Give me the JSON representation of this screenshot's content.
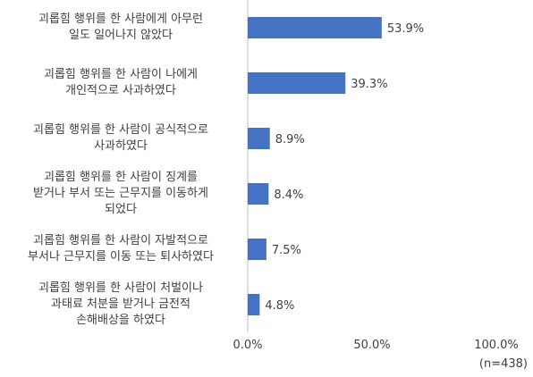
{
  "chart_data": {
    "type": "bar",
    "orientation": "horizontal",
    "categories": [
      "괴롭힘 행위를 한 사람에게 아무런\n일도 일어나지 않았다",
      "괴롭힘 행위를 한 사람이 나에게\n개인적으로 사과하였다",
      "괴롭힘 행위를 한 사람이 공식적으로\n사과하였다",
      "괴롭힘 행위를 한 사람이 징계를\n받거나 부서 또는 근무지를 이동하게\n되었다",
      "괴롭힘 행위를 한 사람이 자발적으로\n부서나 근무지를 이동 또는 퇴사하였다",
      "괴롭힘 행위를 한 사람이 처벌이나\n과태료 처분을 받거나 금전적\n손해배상을 하였다"
    ],
    "values": [
      53.9,
      39.3,
      8.9,
      8.4,
      7.5,
      4.8
    ],
    "value_labels": [
      "53.9%",
      "39.3%",
      "8.9%",
      "8.4%",
      "7.5%",
      "4.8%"
    ],
    "xlim": [
      0,
      100
    ],
    "xticks": [
      "0.0%",
      "50.0%",
      "100.0%"
    ],
    "grid": false,
    "bar_color": "#4472C4",
    "note": "(n=438)"
  }
}
